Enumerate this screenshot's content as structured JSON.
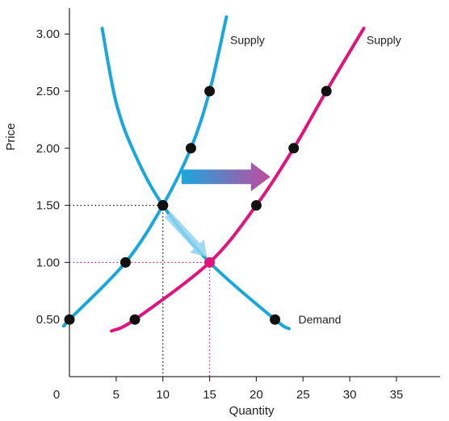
{
  "chart_data": {
    "type": "line",
    "title": "",
    "xlabel": "Quantity",
    "ylabel": "Price",
    "xlim": [
      0,
      40
    ],
    "ylim": [
      0,
      3.2
    ],
    "xticks": [
      {
        "value": 0,
        "label": "0"
      },
      {
        "value": 5,
        "label": "5"
      },
      {
        "value": 10,
        "label": "10"
      },
      {
        "value": 15,
        "label": "15"
      },
      {
        "value": 20,
        "label": "20"
      },
      {
        "value": 25,
        "label": "25"
      },
      {
        "value": 30,
        "label": "30"
      },
      {
        "value": 35,
        "label": "35"
      }
    ],
    "yticks": [
      {
        "value": 0.5,
        "label": "0.50"
      },
      {
        "value": 1.0,
        "label": "1.00"
      },
      {
        "value": 1.5,
        "label": "1.50"
      },
      {
        "value": 2.0,
        "label": "2.00"
      },
      {
        "value": 2.5,
        "label": "2.50"
      },
      {
        "value": 3.0,
        "label": "3.00"
      }
    ],
    "highlight_tick_color": "#e0147d",
    "highlight_x_tick": 15,
    "highlight_y_tick": 1.0,
    "series": [
      {
        "name": "Supply",
        "color": "#1aa7dd",
        "curve": [
          [
            -0.5,
            0.45
          ],
          [
            0,
            0.5
          ],
          [
            6,
            1.0
          ],
          [
            10,
            1.5
          ],
          [
            13,
            2.0
          ],
          [
            15,
            2.5
          ],
          [
            16.8,
            3.15
          ]
        ],
        "points": [
          [
            0,
            0.5
          ],
          [
            6,
            1.0
          ],
          [
            10,
            1.5
          ],
          [
            13,
            2.0
          ],
          [
            15,
            2.5
          ]
        ],
        "label": {
          "text": "Supply",
          "x": 17.2,
          "y": 2.95
        }
      },
      {
        "name": "Supply",
        "color": "#e0147d",
        "curve": [
          [
            4.5,
            0.4
          ],
          [
            7,
            0.5
          ],
          [
            15,
            1.0
          ],
          [
            20,
            1.5
          ],
          [
            24,
            2.0
          ],
          [
            27.5,
            2.5
          ],
          [
            31.5,
            3.05
          ]
        ],
        "points": [
          [
            7,
            0.5
          ],
          [
            20,
            1.5
          ],
          [
            24,
            2.0
          ],
          [
            27.5,
            2.5
          ]
        ],
        "label": {
          "text": "Supply",
          "x": 31.8,
          "y": 2.95
        }
      },
      {
        "name": "Demand",
        "color": "#1aa7dd",
        "curve": [
          [
            3.5,
            3.05
          ],
          [
            5,
            2.4
          ],
          [
            7,
            1.95
          ],
          [
            10,
            1.5
          ],
          [
            15,
            1.0
          ],
          [
            22,
            0.5
          ],
          [
            23.5,
            0.42
          ]
        ],
        "points": [
          [
            22,
            0.5
          ]
        ],
        "label": {
          "text": "Demand",
          "x": 24.5,
          "y": 0.5
        }
      }
    ],
    "equilibria": [
      {
        "x": 10,
        "y": 1.5,
        "color": "#111111",
        "guide_color": "#111111"
      },
      {
        "x": 15,
        "y": 1.0,
        "color": "#e0147d",
        "guide_color": "#e0147d"
      }
    ],
    "annotations": [
      {
        "type": "shift-arrow",
        "from": [
          12,
          1.75
        ],
        "to": [
          21.5,
          1.75
        ],
        "colors": [
          "#1aa7dd",
          "#c04a9e"
        ]
      },
      {
        "type": "movement-arrow",
        "from": [
          10.5,
          1.42
        ],
        "to": [
          14.7,
          1.05
        ],
        "color": "#8fd3f0"
      }
    ]
  }
}
